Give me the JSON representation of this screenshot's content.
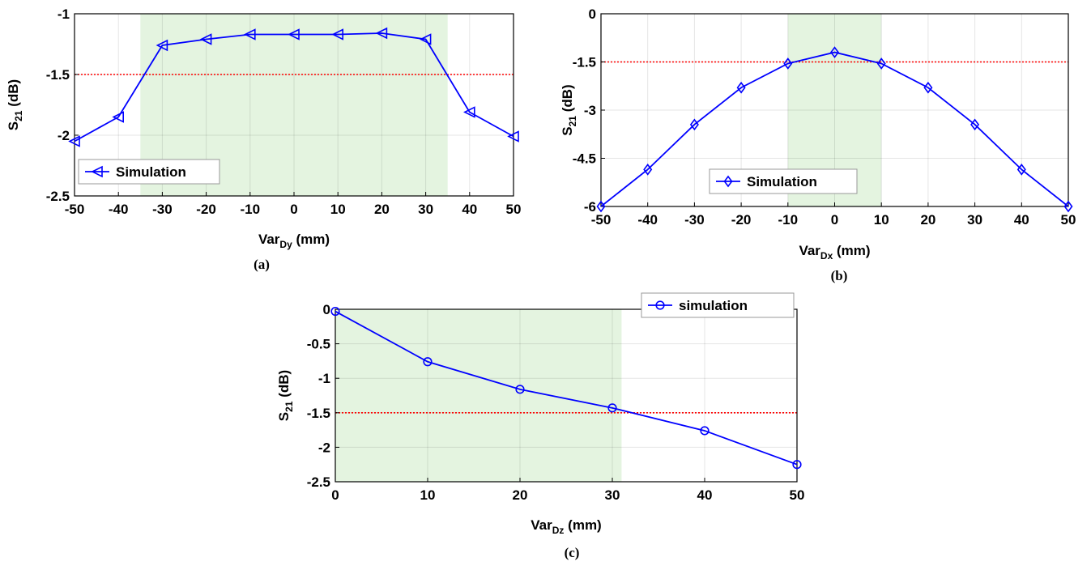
{
  "chart_data": [
    {
      "type": "line",
      "caption": "(a)",
      "x": [
        -50,
        -40,
        -30,
        -20,
        -10,
        0,
        10,
        20,
        30,
        40,
        50
      ],
      "series": [
        {
          "name": "Simulation",
          "marker": "triangle-left",
          "color": "#0000ff",
          "values": [
            -2.05,
            -1.85,
            -1.26,
            -1.21,
            -1.17,
            -1.17,
            -1.17,
            -1.16,
            -1.21,
            -1.81,
            -2.01
          ]
        }
      ],
      "xlim": [
        -50,
        50
      ],
      "ylim": [
        -2.5,
        -1
      ],
      "xticks": [
        "-50",
        "-40",
        "-30",
        "-20",
        "-10",
        "0",
        "10",
        "20",
        "30",
        "40",
        "50"
      ],
      "yticks": [
        "-1",
        "-1.5",
        "-2",
        "-2.5"
      ],
      "xlabel": {
        "main": "Var",
        "sub": "Dy",
        "unit": " (mm)"
      },
      "ylabel": {
        "main": "S",
        "sub": "21",
        "unit": " (dB)"
      },
      "threshold": -1.5,
      "threshold_color": "#ff0000",
      "shaded_region": [
        -35,
        35
      ],
      "shade_color": "#e4f4e0",
      "legend": "bottom-left",
      "grid": true
    },
    {
      "type": "line",
      "caption": "(b)",
      "x": [
        -50,
        -40,
        -30,
        -20,
        -10,
        0,
        10,
        20,
        30,
        40,
        50
      ],
      "series": [
        {
          "name": "Simulation",
          "marker": "diamond",
          "color": "#0000ff",
          "values": [
            -6.0,
            -4.85,
            -3.45,
            -2.3,
            -1.55,
            -1.2,
            -1.55,
            -2.3,
            -3.45,
            -4.85,
            -6.0
          ]
        }
      ],
      "xlim": [
        -50,
        50
      ],
      "ylim": [
        -6,
        0
      ],
      "xticks": [
        "-50",
        "-40",
        "-30",
        "-20",
        "-10",
        "0",
        "10",
        "20",
        "30",
        "40",
        "50"
      ],
      "yticks": [
        "0",
        "-1.5",
        "-3",
        "-4.5",
        "-6"
      ],
      "xlabel": {
        "main": "Var",
        "sub": "Dx",
        "unit": " (mm)"
      },
      "ylabel": {
        "main": "S",
        "sub": "21",
        "unit": " (dB)"
      },
      "threshold": -1.5,
      "threshold_color": "#ff0000",
      "shaded_region": [
        -10,
        10
      ],
      "shade_color": "#e4f4e0",
      "legend": "bottom-center",
      "grid": true
    },
    {
      "type": "line",
      "caption": "(c)",
      "x": [
        0,
        10,
        20,
        30,
        40,
        50
      ],
      "series": [
        {
          "name": "simulation",
          "marker": "circle",
          "color": "#0000ff",
          "values": [
            -0.03,
            -0.76,
            -1.16,
            -1.43,
            -1.76,
            -2.25
          ]
        }
      ],
      "xlim": [
        0,
        50
      ],
      "ylim": [
        -2.5,
        0
      ],
      "xticks": [
        "0",
        "10",
        "20",
        "30",
        "40",
        "50"
      ],
      "yticks": [
        "0",
        "-0.5",
        "-1",
        "-1.5",
        "-2",
        "-2.5"
      ],
      "xlabel": {
        "main": "Var",
        "sub": "Dz",
        "unit": " (mm)"
      },
      "ylabel": {
        "main": "S",
        "sub": "21",
        "unit": " (dB)"
      },
      "threshold": -1.5,
      "threshold_color": "#ff0000",
      "shaded_region": [
        0,
        31
      ],
      "shade_color": "#e4f4e0",
      "legend": "top-right",
      "grid": true
    }
  ]
}
